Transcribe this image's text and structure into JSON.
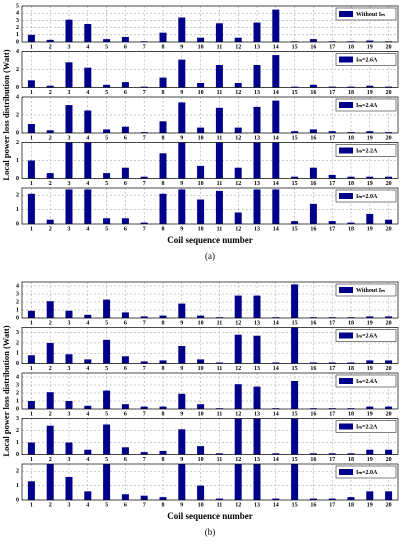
{
  "chart_data": [
    {
      "type": "bar",
      "y_label": "Local power loss distribution (Watt)",
      "categories": [
        "1",
        "2",
        "3",
        "4",
        "5",
        "6",
        "7",
        "8",
        "9",
        "10",
        "11",
        "12",
        "13",
        "14",
        "15",
        "16",
        "17",
        "18",
        "19",
        "20"
      ],
      "series": [
        {
          "name": "Without Iₘ",
          "color": "#00008b",
          "values": [
            1.0,
            0.3,
            3.1,
            2.5,
            0.4,
            0.7,
            0.1,
            1.3,
            3.4,
            0.6,
            2.6,
            0.6,
            2.7,
            4.5,
            0.1,
            0.4,
            0.1,
            0.1,
            0.2,
            0.1
          ]
        }
      ],
      "ylim": [
        0,
        5
      ],
      "yticks": [
        0,
        1,
        2,
        3,
        4,
        5
      ],
      "grid": true
    },
    {
      "type": "bar",
      "categories": [
        "1",
        "2",
        "3",
        "4",
        "5",
        "6",
        "7",
        "8",
        "9",
        "10",
        "11",
        "12",
        "13",
        "14",
        "15",
        "16",
        "17",
        "18",
        "19",
        "20"
      ],
      "series": [
        {
          "name": "Iₘ=2.6A",
          "color": "#00008b",
          "values": [
            0.8,
            0.2,
            2.8,
            2.2,
            0.3,
            0.6,
            0.1,
            1.1,
            3.1,
            0.5,
            2.5,
            0.5,
            2.5,
            3.6,
            0.1,
            0.3,
            0.1,
            0.1,
            0.2,
            0.1
          ]
        }
      ],
      "ylim": [
        0,
        4
      ],
      "yticks": [
        0,
        2,
        4
      ],
      "grid": true
    },
    {
      "type": "bar",
      "categories": [
        "1",
        "2",
        "3",
        "4",
        "5",
        "6",
        "7",
        "8",
        "9",
        "10",
        "11",
        "12",
        "13",
        "14",
        "15",
        "16",
        "17",
        "18",
        "19",
        "20"
      ],
      "series": [
        {
          "name": "Iₘ=2.4A",
          "color": "#00008b",
          "values": [
            1.0,
            0.3,
            3.1,
            2.5,
            0.4,
            0.7,
            0.1,
            1.3,
            3.4,
            0.6,
            2.8,
            0.6,
            2.9,
            3.6,
            0.2,
            0.4,
            0.2,
            0.1,
            0.2,
            0.1
          ]
        }
      ],
      "ylim": [
        0,
        4
      ],
      "yticks": [
        0,
        2,
        4
      ],
      "grid": true
    },
    {
      "type": "bar",
      "categories": [
        "1",
        "2",
        "3",
        "4",
        "5",
        "6",
        "7",
        "8",
        "9",
        "10",
        "11",
        "12",
        "13",
        "14",
        "15",
        "16",
        "17",
        "18",
        "19",
        "20"
      ],
      "series": [
        {
          "name": "Iₘ=2.2A",
          "color": "#00008b",
          "values": [
            1.0,
            0.3,
            2,
            2,
            0.3,
            0.6,
            0.1,
            1.4,
            2,
            0.7,
            2,
            0.6,
            2,
            2,
            0.1,
            0.6,
            0.2,
            0.1,
            0.1,
            0.1
          ]
        }
      ],
      "ylim": [
        0,
        2
      ],
      "yticks": [
        0,
        1,
        2
      ],
      "grid": true
    },
    {
      "type": "bar",
      "x_label": "Coil sequence number",
      "caption": "(a)",
      "categories": [
        "1",
        "2",
        "3",
        "4",
        "5",
        "6",
        "7",
        "8",
        "9",
        "10",
        "11",
        "12",
        "13",
        "14",
        "15",
        "16",
        "17",
        "18",
        "19",
        "20"
      ],
      "series": [
        {
          "name": "Iₘ=2.0A",
          "color": "#00008b",
          "values": [
            2.1,
            0.3,
            2.4,
            2.4,
            0.4,
            0.4,
            0.1,
            2.1,
            2.4,
            1.7,
            2.3,
            0.8,
            2.4,
            2.4,
            0.2,
            1.4,
            0.2,
            0.1,
            0.7,
            0.3
          ]
        }
      ],
      "ylim": [
        0,
        2.5
      ],
      "yticks": [
        0,
        1,
        2
      ],
      "grid": true
    },
    {
      "type": "bar",
      "y_label": "Local power loss distribution (Watt)",
      "categories": [
        "1",
        "2",
        "3",
        "4",
        "5",
        "6",
        "7",
        "8",
        "9",
        "10",
        "11",
        "12",
        "13",
        "14",
        "15",
        "16",
        "17",
        "18",
        "19",
        "20"
      ],
      "series": [
        {
          "name": "Without Iₘ",
          "color": "#00008b",
          "values": [
            0.9,
            2.1,
            0.9,
            0.4,
            2.3,
            0.7,
            0.2,
            0.3,
            1.8,
            0.3,
            0.1,
            2.8,
            2.8,
            0.1,
            4.2,
            0.1,
            0.1,
            0.1,
            0.2,
            0.2
          ]
        }
      ],
      "ylim": [
        0,
        4.5
      ],
      "yticks": [
        0,
        1,
        2,
        3,
        4
      ],
      "grid": true
    },
    {
      "type": "bar",
      "categories": [
        "1",
        "2",
        "3",
        "4",
        "5",
        "6",
        "7",
        "8",
        "9",
        "10",
        "11",
        "12",
        "13",
        "14",
        "15",
        "16",
        "17",
        "18",
        "19",
        "20"
      ],
      "series": [
        {
          "name": "Iₘ=2.6A",
          "color": "#00008b",
          "values": [
            0.8,
            2.0,
            0.9,
            0.4,
            2.3,
            0.7,
            0.2,
            0.3,
            1.7,
            0.4,
            0.1,
            2.8,
            2.7,
            0.1,
            3.5,
            0.1,
            0.1,
            0.1,
            0.3,
            0.3
          ]
        }
      ],
      "ylim": [
        0,
        3.5
      ],
      "yticks": [
        0,
        1,
        2,
        3
      ],
      "grid": true
    },
    {
      "type": "bar",
      "categories": [
        "1",
        "2",
        "3",
        "4",
        "5",
        "6",
        "7",
        "8",
        "9",
        "10",
        "11",
        "12",
        "13",
        "14",
        "15",
        "16",
        "17",
        "18",
        "19",
        "20"
      ],
      "series": [
        {
          "name": "Iₘ=2.4A",
          "color": "#00008b",
          "values": [
            1.0,
            2.1,
            1.0,
            0.4,
            2.3,
            0.6,
            0.3,
            0.3,
            1.9,
            0.6,
            0.1,
            3.1,
            2.8,
            0.1,
            3.5,
            0.1,
            0.1,
            0.1,
            0.3,
            0.3
          ]
        }
      ],
      "ylim": [
        0,
        4.5
      ],
      "yticks": [
        0,
        1,
        2,
        3,
        4
      ],
      "grid": true
    },
    {
      "type": "bar",
      "categories": [
        "1",
        "2",
        "3",
        "4",
        "5",
        "6",
        "7",
        "8",
        "9",
        "10",
        "11",
        "12",
        "13",
        "14",
        "15",
        "16",
        "17",
        "18",
        "19",
        "20"
      ],
      "series": [
        {
          "name": "Iₘ=2.2A",
          "color": "#00008b",
          "values": [
            1.0,
            2.4,
            1.0,
            0.4,
            2.5,
            0.6,
            0.2,
            0.3,
            2.1,
            0.7,
            0.1,
            3,
            3,
            0.1,
            3,
            0.1,
            0.1,
            0.1,
            0.4,
            0.4
          ]
        }
      ],
      "ylim": [
        0,
        3
      ],
      "yticks": [
        0,
        1,
        2,
        3
      ],
      "grid": true
    },
    {
      "type": "bar",
      "x_label": "Coil sequence number",
      "caption": "(b)",
      "categories": [
        "1",
        "2",
        "3",
        "4",
        "5",
        "6",
        "7",
        "8",
        "9",
        "10",
        "11",
        "12",
        "13",
        "14",
        "15",
        "16",
        "17",
        "18",
        "19",
        "20"
      ],
      "series": [
        {
          "name": "Iₘ=2.0A",
          "color": "#00008b",
          "values": [
            1.3,
            2.5,
            1.6,
            0.6,
            2.5,
            0.4,
            0.3,
            0.2,
            2.5,
            1.0,
            0.1,
            2.5,
            2.5,
            0.1,
            2.5,
            0.1,
            0.1,
            0.2,
            0.6,
            0.6
          ]
        }
      ],
      "ylim": [
        0,
        2.5
      ],
      "yticks": [
        0,
        1,
        2
      ],
      "grid": true
    }
  ]
}
